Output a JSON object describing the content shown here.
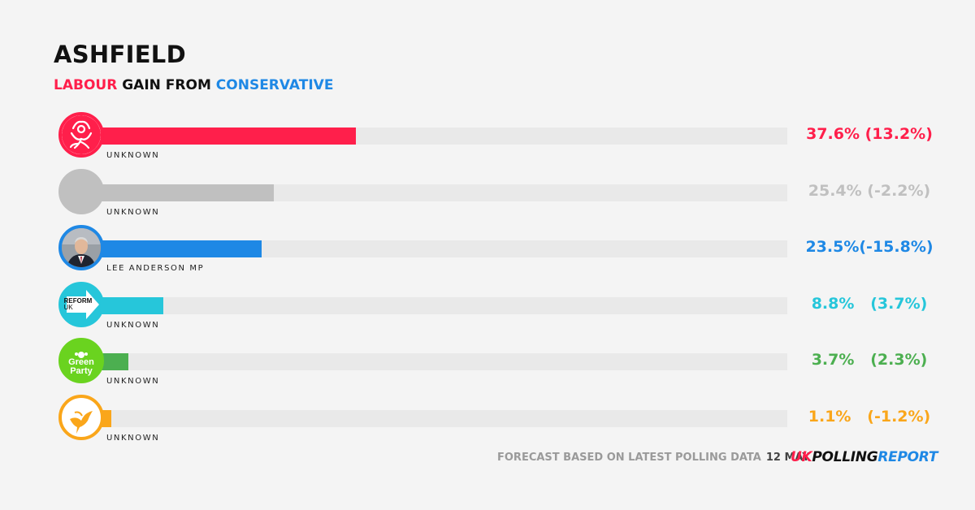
{
  "header": {
    "title": "ASHFIELD",
    "subtitle_part1": "LABOUR",
    "subtitle_part2": " GAIN FROM ",
    "subtitle_part3": "CONSERVATIVE",
    "color_part1": "#ff1f4b",
    "color_part3": "#1e88e5"
  },
  "chart_data": {
    "type": "bar",
    "orientation": "horizontal",
    "xlim": [
      0,
      100
    ],
    "categories": [
      "UNKNOWN",
      "UNKNOWN",
      "LEE ANDERSON MP",
      "UNKNOWN",
      "UNKNOWN",
      "UNKNOWN"
    ],
    "values": [
      37.6,
      25.4,
      23.5,
      8.8,
      3.7,
      1.1
    ],
    "rows": [
      {
        "party_icon": "labour-rose-icon",
        "candidate": "UNKNOWN",
        "share": 37.6,
        "label": "37.6% (13.2%)",
        "color": "#ff1f4b"
      },
      {
        "party_icon": "independent-grey-icon",
        "candidate": "UNKNOWN",
        "share": 25.4,
        "label": "25.4% (-2.2%)",
        "color": "#c0c0c0"
      },
      {
        "party_icon": "candidate-photo-icon",
        "candidate": "LEE ANDERSON MP",
        "share": 23.5,
        "label": "23.5%(-15.8%)",
        "color": "#1e88e5"
      },
      {
        "party_icon": "reform-uk-icon",
        "candidate": "UNKNOWN",
        "share": 8.8,
        "label": "8.8%   (3.7%)",
        "color": "#26c6da"
      },
      {
        "party_icon": "green-party-icon",
        "candidate": "UNKNOWN",
        "share": 3.7,
        "label": "3.7%   (2.3%)",
        "color": "#4caf50"
      },
      {
        "party_icon": "lib-dem-bird-icon",
        "candidate": "UNKNOWN",
        "share": 1.1,
        "label": "1.1%   (-1.2%)",
        "color": "#faa61a"
      }
    ],
    "green_logo_text": [
      "Green",
      "Party"
    ],
    "reform_logo_text": [
      "REFORM",
      "UK"
    ]
  },
  "footer": {
    "note": "FORECAST BASED ON LATEST POLLING DATA",
    "date": "12 MAY",
    "brand_part1": "UK",
    "brand_part2": "POLLING",
    "brand_part3": "REPORT",
    "brand_color1": "#ff1f4b",
    "brand_color2": "#111111",
    "brand_color3": "#1e88e5"
  }
}
